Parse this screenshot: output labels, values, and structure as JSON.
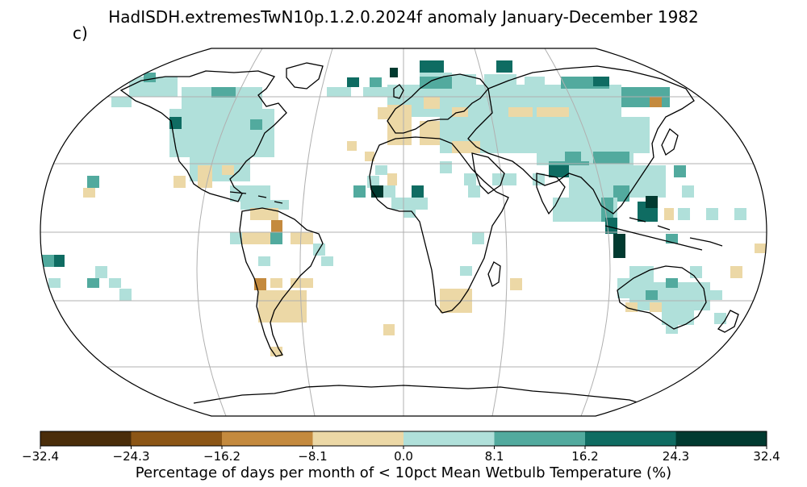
{
  "title": "HadISDH.extremesTwN10p.1.2.0.2024f anomaly January-December 1982",
  "panel_label": "c)",
  "colorbar": {
    "label": "Percentage of days per month of < 10pct Mean Wetbulb Temperature (%)",
    "ticks": [
      "−32.4",
      "−24.3",
      "−16.2",
      "−8.1",
      "0.0",
      "8.1",
      "16.2",
      "24.3",
      "32.4"
    ],
    "colors": [
      "#4a2d0a",
      "#8c5616",
      "#c48a3e",
      "#ecd8a6",
      "#b0e0da",
      "#52aa9e",
      "#0f6c62",
      "#013a30"
    ]
  },
  "colors": {
    "land_outline": "#000000",
    "graticule": "#b0b0b0"
  }
}
